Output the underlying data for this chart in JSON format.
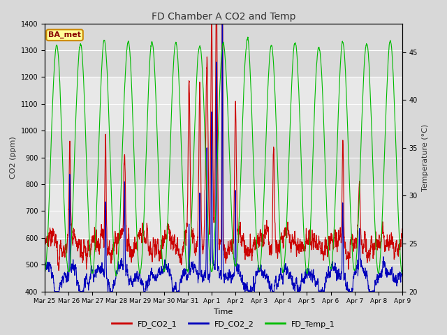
{
  "title": "FD Chamber A CO2 and Temp",
  "xlabel": "Time",
  "ylabel_left": "CO2 (ppm)",
  "ylabel_right": "Temperature (°C)",
  "ylim_left": [
    400,
    1400
  ],
  "ylim_right": [
    20,
    48
  ],
  "colors": {
    "co2_1": "#cc0000",
    "co2_2": "#0000bb",
    "temp_1": "#00bb00"
  },
  "background_color": "#d8d8d8",
  "plot_bg_color": "#e8e8e8",
  "plot_bg_stripe_color": "#d0d0d0",
  "legend_box_color": "#ffff99",
  "legend_box_edge": "#cc8800",
  "annotation_text": "BA_met",
  "annotation_color": "#880000",
  "linewidth": 0.8,
  "x_tick_labels": [
    "Mar 25",
    "Mar 26",
    "Mar 27",
    "Mar 28",
    "Mar 29",
    "Mar 30",
    "Mar 31",
    "Apr 1",
    "Apr 2",
    "Apr 3",
    "Apr 4",
    "Apr 5",
    "Apr 6",
    "Apr 7",
    "Apr 8",
    "Apr 9"
  ]
}
